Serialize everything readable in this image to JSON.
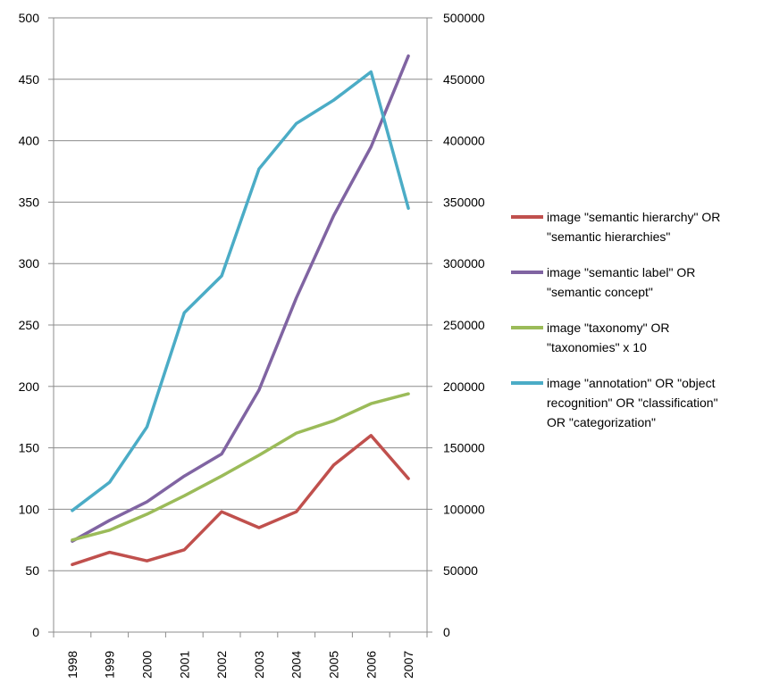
{
  "chart_data": {
    "type": "line",
    "categories": [
      "1998",
      "1999",
      "2000",
      "2001",
      "2002",
      "2003",
      "2004",
      "2005",
      "2006",
      "2007"
    ],
    "y_left": {
      "ylim": [
        0,
        500
      ],
      "ticks": [
        "0",
        "50",
        "100",
        "150",
        "200",
        "250",
        "300",
        "350",
        "400",
        "450",
        "500"
      ]
    },
    "y_right": {
      "ylim": [
        0,
        500000
      ],
      "ticks": [
        "0",
        "50000",
        "100000",
        "150000",
        "200000",
        "250000",
        "300000",
        "350000",
        "400000",
        "450000",
        "500000"
      ]
    },
    "grid": "horizontal",
    "legend_position": "right",
    "series": [
      {
        "name": "image \"semantic hierarchy\" OR \"semantic hierarchies\"",
        "axis": "left",
        "color": "#C0504D",
        "values": [
          55,
          65,
          58,
          67,
          98,
          85,
          98,
          136,
          160,
          125
        ]
      },
      {
        "name": "image \"semantic label\" OR \"semantic concept\"",
        "axis": "left",
        "color": "#8064A2",
        "values": [
          74,
          91,
          106,
          127,
          145,
          197,
          272,
          339,
          395,
          469
        ]
      },
      {
        "name": "image \"taxonomy\"  OR \"taxonomies\" x 10",
        "axis": "left",
        "color": "#9BBB59",
        "values": [
          75,
          83,
          96,
          111,
          127,
          144,
          162,
          172,
          186,
          194
        ]
      },
      {
        "name": "image \"annotation\"  OR \"object recognition\" OR \"classification\" OR \"categorization\"",
        "axis": "right",
        "color": "#4BACC6",
        "values": [
          99000,
          122000,
          167000,
          260000,
          290000,
          377000,
          414000,
          433000,
          456000,
          345000
        ]
      }
    ]
  },
  "legend": [
    {
      "text": "image \"semantic hierarchy\" OR\n\"semantic hierarchies\"",
      "color": "#C0504D"
    },
    {
      "text": "image \"semantic label\" OR\n\"semantic concept\"",
      "color": "#8064A2"
    },
    {
      "text": "image \"taxonomy\"  OR\n\"taxonomies\" x 10",
      "color": "#9BBB59"
    },
    {
      "text": "image \"annotation\"  OR \"object\nrecognition\" OR \"classification\"\nOR \"categorization\"",
      "color": "#4BACC6"
    }
  ]
}
